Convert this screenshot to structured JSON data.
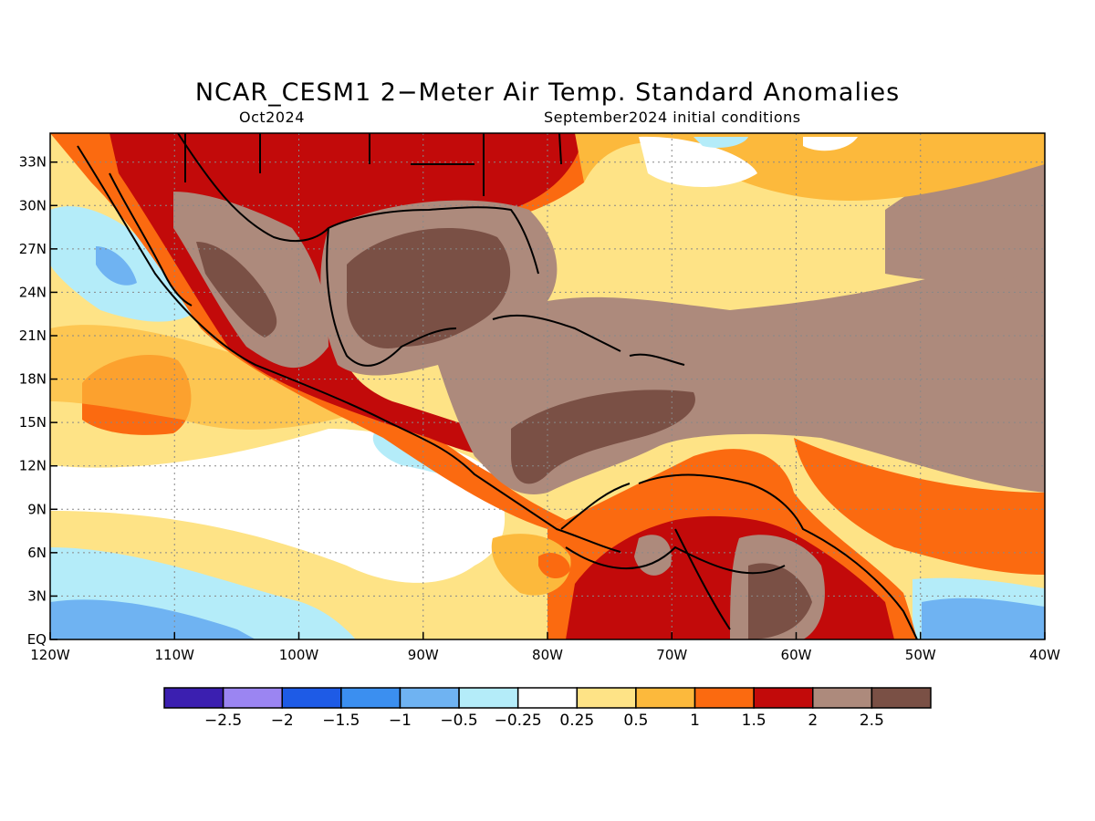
{
  "header": {
    "title": "NCAR_CESM1 2−Meter Air Temp. Standard Anomalies",
    "valid_month": "Oct2024",
    "init": "September2024 initial conditions"
  },
  "map": {
    "lon_range": [
      -120,
      -40
    ],
    "lat_range": [
      0,
      35
    ],
    "x_ticks": [
      "120W",
      "110W",
      "100W",
      "90W",
      "80W",
      "70W",
      "60W",
      "50W",
      "40W"
    ],
    "y_ticks": [
      "EQ",
      "3N",
      "6N",
      "9N",
      "12N",
      "15N",
      "18N",
      "21N",
      "24N",
      "27N",
      "30N",
      "33N"
    ],
    "grid": true
  },
  "colorbar": {
    "colors": [
      "#3b1fb0",
      "#9b85f2",
      "#1e5be6",
      "#3b8ff0",
      "#6fb3f2",
      "#b4ecf9",
      "#ffffff",
      "#fee386",
      "#fcb93c",
      "#fb6a10",
      "#c20a0a",
      "#ad8a7c",
      "#7a5045"
    ],
    "labels": [
      "−2.5",
      "−2",
      "−1.5",
      "−1",
      "−0.5",
      "−0.25",
      "0.25",
      "0.5",
      "1",
      "1.5",
      "2",
      "2.5"
    ]
  }
}
